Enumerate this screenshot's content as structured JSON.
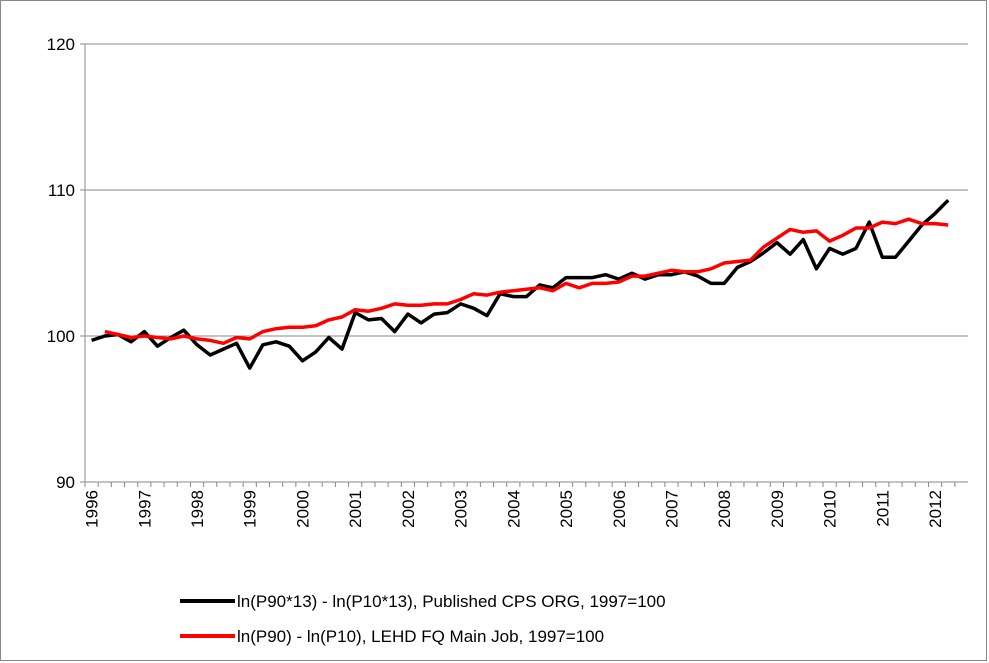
{
  "chart_data": {
    "type": "line",
    "categories": [
      "1996",
      null,
      null,
      null,
      "1997",
      null,
      null,
      null,
      "1998",
      null,
      null,
      null,
      "1999",
      null,
      null,
      null,
      "2000",
      null,
      null,
      null,
      "2001",
      null,
      null,
      null,
      "2002",
      null,
      null,
      null,
      "2003",
      null,
      null,
      null,
      "2004",
      null,
      null,
      null,
      "2005",
      null,
      null,
      null,
      "2006",
      null,
      null,
      null,
      "2007",
      null,
      null,
      null,
      "2008",
      null,
      null,
      null,
      "2009",
      null,
      null,
      null,
      "2010",
      null,
      null,
      null,
      "2011",
      null,
      null,
      null,
      "2012",
      null,
      null
    ],
    "series": [
      {
        "name": "ln(P90*13) - ln(P10*13), Published CPS ORG, 1997=100",
        "color": "#000000",
        "values": [
          99.7,
          100.0,
          100.1,
          99.6,
          100.3,
          99.3,
          99.9,
          100.4,
          99.4,
          98.7,
          99.1,
          99.5,
          97.8,
          99.4,
          99.6,
          99.3,
          98.3,
          98.9,
          99.9,
          99.1,
          101.6,
          101.1,
          101.2,
          100.3,
          101.5,
          100.9,
          101.5,
          101.6,
          102.2,
          101.9,
          101.4,
          102.9,
          102.7,
          102.7,
          103.5,
          103.3,
          104.0,
          104.0,
          104.0,
          104.2,
          103.9,
          104.3,
          103.9,
          104.2,
          104.2,
          104.4,
          104.1,
          103.6,
          103.6,
          104.7,
          105.1,
          105.7,
          106.4,
          105.6,
          106.6,
          104.6,
          106.0,
          105.6,
          106.0,
          107.8,
          105.4,
          105.4,
          106.5,
          107.6,
          108.4,
          109.3,
          null
        ]
      },
      {
        "name": "ln(P90) - ln(P10), LEHD FQ Main Job, 1997=100",
        "color": "#ff0000",
        "values": [
          null,
          100.3,
          100.1,
          99.9,
          100.0,
          99.9,
          99.8,
          100.0,
          99.8,
          99.7,
          99.5,
          99.9,
          99.8,
          100.3,
          100.5,
          100.6,
          100.6,
          100.7,
          101.1,
          101.3,
          101.8,
          101.7,
          101.9,
          102.2,
          102.1,
          102.1,
          102.2,
          102.2,
          102.5,
          102.9,
          102.8,
          103.0,
          103.1,
          103.2,
          103.3,
          103.1,
          103.6,
          103.3,
          103.6,
          103.6,
          103.7,
          104.1,
          104.1,
          104.3,
          104.5,
          104.4,
          104.4,
          104.6,
          105.0,
          105.1,
          105.2,
          106.1,
          106.7,
          107.3,
          107.1,
          107.2,
          106.5,
          106.9,
          107.4,
          107.4,
          107.8,
          107.7,
          108.0,
          107.7,
          107.7,
          107.6,
          null
        ]
      }
    ],
    "ylim": [
      90,
      120
    ],
    "yticks": [
      90,
      100,
      110,
      120
    ],
    "grid": true,
    "legend": "bottom"
  }
}
